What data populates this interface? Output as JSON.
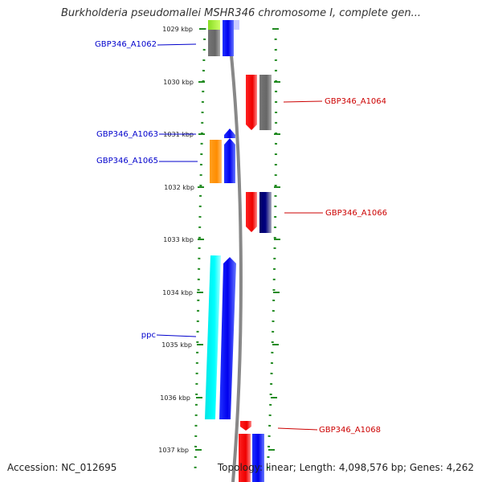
{
  "title": "Burkholderia pseudomallei MSHR346 chromosome I, complete gen...",
  "footer": {
    "accession": "Accession: NC_012695",
    "summary": "Topology: linear; Length: 4,098,576 bp; Genes: 4,262"
  },
  "colors": {
    "blue_label": "#0000cc",
    "red_label": "#cc0000",
    "ruler_green": "#228b22",
    "backbone": "#888888"
  },
  "ticks": [
    "1029 kbp",
    "1030 kbp",
    "1031 kbp",
    "1032 kbp",
    "1033 kbp",
    "1034 kbp",
    "1035 kbp",
    "1036 kbp",
    "1037 kbp"
  ],
  "labels": [
    {
      "text": "GBP346_A1062",
      "color": "blue"
    },
    {
      "text": "GBP346_A1063",
      "color": "blue"
    },
    {
      "text": "GBP346_A1065",
      "color": "blue"
    },
    {
      "text": "ppc",
      "color": "blue"
    },
    {
      "text": "GBP346_A1064",
      "color": "red"
    },
    {
      "text": "GBP346_A1066",
      "color": "red"
    },
    {
      "text": "GBP346_A1068",
      "color": "red"
    }
  ]
}
